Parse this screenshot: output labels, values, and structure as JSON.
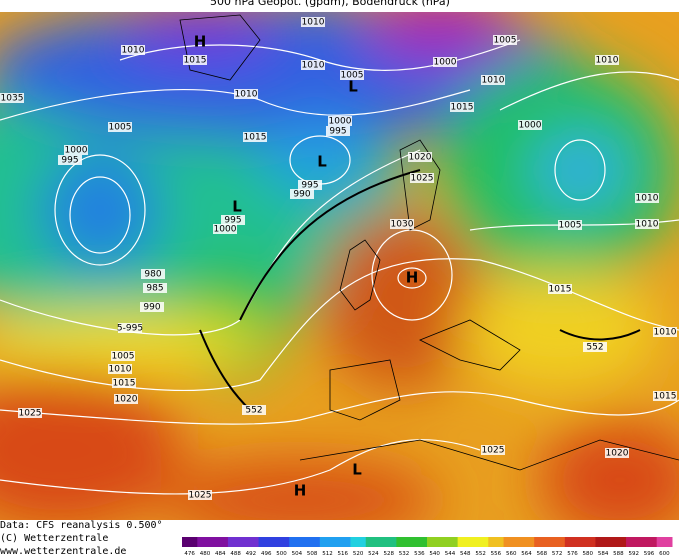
{
  "header": {
    "title": "500 hPa Geopot. (gpdm), Bodendruck (hPa)"
  },
  "map": {
    "labels": [
      "1010",
      "1010",
      "1015",
      "H",
      "1010",
      "1005",
      "L",
      "1000",
      "1010",
      "1005",
      "1010",
      "1035",
      "1010",
      "1015",
      "1005",
      "1000",
      "995",
      "1015",
      "1000",
      "1000",
      "995",
      "L",
      "1020",
      "1025",
      "995",
      "990",
      "L",
      "995",
      "1000",
      "1030",
      "1005",
      "1010",
      "1010",
      "H",
      "980",
      "985",
      "990",
      "5-995",
      "1015",
      "1005",
      "1010",
      "1015",
      "1020",
      "1025",
      "552",
      "552",
      "1010",
      "1015",
      "1025",
      "1020",
      "L",
      "H",
      "1025"
    ]
  },
  "footer": {
    "source": "Data: CFS reanalysis 0.500°",
    "copyright": "(C) Wetterzentrale",
    "url": "www.wetterzentrale.de"
  },
  "colorbar": {
    "labels": [
      "476",
      "480",
      "484",
      "488",
      "492",
      "496",
      "500",
      "504",
      "508",
      "512",
      "516",
      "520",
      "524",
      "528",
      "532",
      "536",
      "540",
      "544",
      "548",
      "552",
      "556",
      "560",
      "564",
      "568",
      "572",
      "576",
      "580",
      "584",
      "588",
      "592",
      "596",
      "600"
    ]
  }
}
